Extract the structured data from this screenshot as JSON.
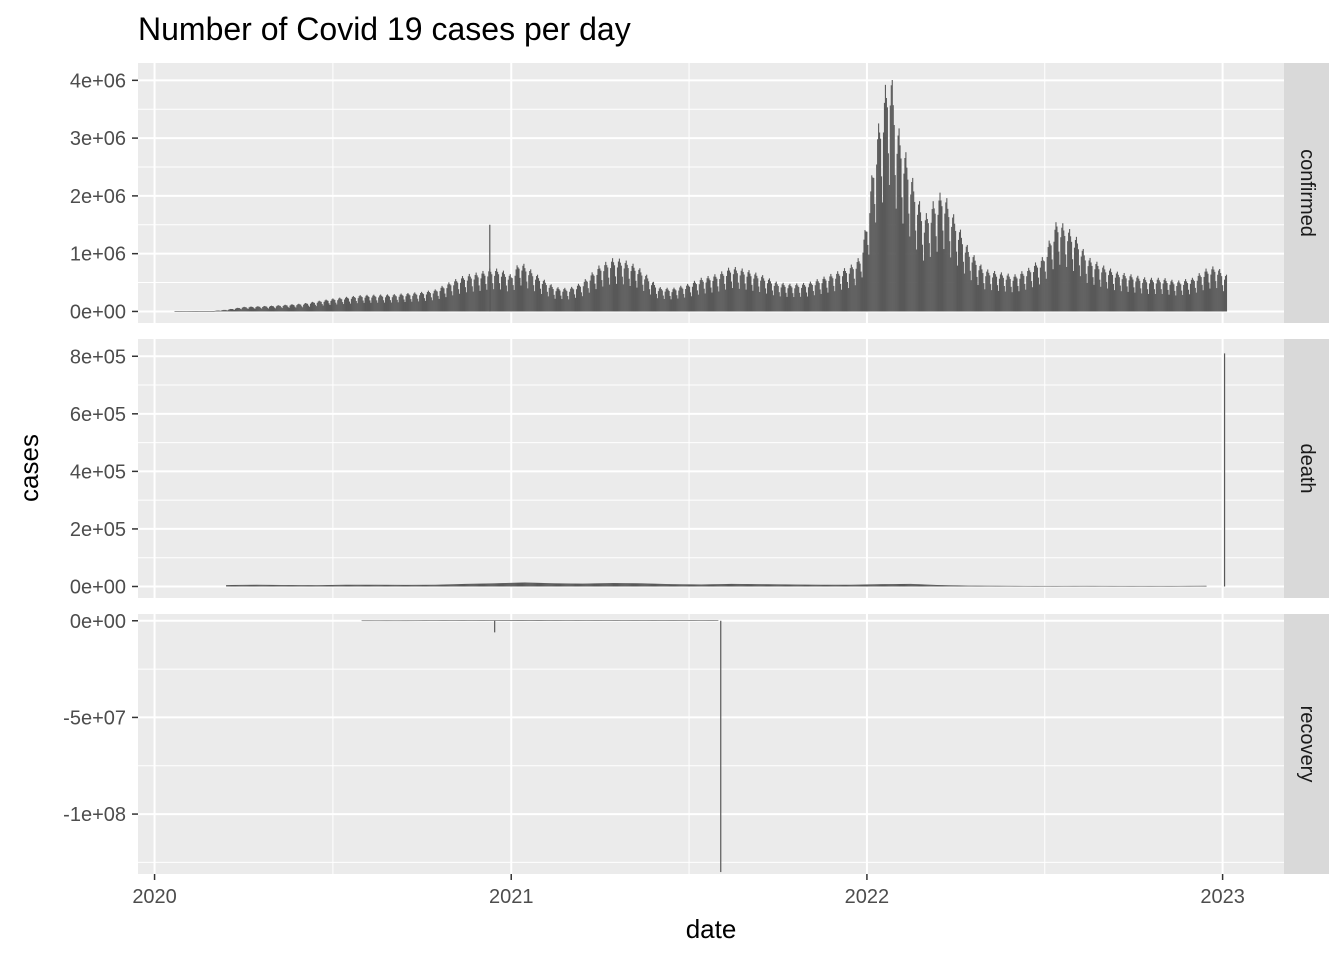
{
  "chart_data": {
    "type": "bar",
    "title": "Number of Covid 19 cases per day",
    "xlabel": "date",
    "ylabel": "cases",
    "grid": true,
    "legend": "none",
    "x_ticks": [
      "2020",
      "2021",
      "2022",
      "2023"
    ],
    "x_range": [
      "2019-12-15",
      "2023-03-05"
    ],
    "bar_color": "#595959",
    "panel_background": "#ebebeb",
    "strip_background": "#d9d9d9",
    "gridline_color": "#ffffff",
    "facets": [
      {
        "label": "confirmed",
        "ylim": [
          -200000,
          4300000
        ],
        "y_ticks": [
          {
            "value": 0,
            "label": "0e+00"
          },
          {
            "value": 1000000,
            "label": "1e+06"
          },
          {
            "value": 2000000,
            "label": "2e+06"
          },
          {
            "value": 3000000,
            "label": "3e+06"
          },
          {
            "value": 4000000,
            "label": "4e+06"
          }
        ],
        "x": [
          "2020-01-22",
          "2020-02-15",
          "2020-03-01",
          "2020-03-15",
          "2020-04-01",
          "2020-05-01",
          "2020-06-01",
          "2020-07-01",
          "2020-08-01",
          "2020-09-01",
          "2020-10-01",
          "2020-10-15",
          "2020-11-01",
          "2020-11-15",
          "2020-12-01",
          "2020-12-10",
          "2020-12-20",
          "2021-01-01",
          "2021-01-10",
          "2021-01-20",
          "2021-02-01",
          "2021-02-15",
          "2021-03-01",
          "2021-03-15",
          "2021-04-01",
          "2021-04-15",
          "2021-04-25",
          "2021-05-10",
          "2021-05-20",
          "2021-06-01",
          "2021-06-15",
          "2021-07-01",
          "2021-07-15",
          "2021-08-01",
          "2021-08-15",
          "2021-09-01",
          "2021-09-15",
          "2021-10-01",
          "2021-10-15",
          "2021-11-01",
          "2021-11-15",
          "2021-12-01",
          "2021-12-15",
          "2021-12-25",
          "2022-01-01",
          "2022-01-10",
          "2022-01-20",
          "2022-01-25",
          "2022-02-01",
          "2022-02-10",
          "2022-02-20",
          "2022-03-01",
          "2022-03-10",
          "2022-03-20",
          "2022-04-01",
          "2022-04-15",
          "2022-05-01",
          "2022-05-15",
          "2022-06-01",
          "2022-06-15",
          "2022-07-01",
          "2022-07-15",
          "2022-07-25",
          "2022-08-05",
          "2022-08-15",
          "2022-09-01",
          "2022-09-15",
          "2022-10-01",
          "2022-10-15",
          "2022-11-01",
          "2022-11-15",
          "2022-12-01",
          "2022-12-15",
          "2022-12-25",
          "2023-01-01",
          "2023-01-05"
        ],
        "values": [
          500,
          2000,
          8000,
          30000,
          75000,
          95000,
          130000,
          210000,
          270000,
          280000,
          320000,
          360000,
          500000,
          600000,
          650000,
          700000,
          700000,
          600000,
          830000,
          700000,
          550000,
          400000,
          380000,
          480000,
          750000,
          870000,
          860000,
          750000,
          600000,
          400000,
          380000,
          450000,
          550000,
          620000,
          740000,
          680000,
          600000,
          480000,
          450000,
          470000,
          550000,
          650000,
          750000,
          900000,
          1500000,
          2800000,
          3700000,
          4050000,
          3100000,
          2600000,
          2000000,
          1550000,
          1800000,
          2000000,
          1550000,
          1050000,
          700000,
          650000,
          600000,
          700000,
          900000,
          1500000,
          1400000,
          1200000,
          900000,
          750000,
          650000,
          600000,
          550000,
          550000,
          500000,
          550000,
          700000,
          750000,
          650000,
          600000
        ],
        "spikes": [
          {
            "x": "2020-12-10",
            "value": 1500000
          }
        ]
      },
      {
        "label": "death",
        "ylim": [
          -40000,
          860000
        ],
        "y_ticks": [
          {
            "value": 0,
            "label": "0e+00"
          },
          {
            "value": 200000,
            "label": "2e+05"
          },
          {
            "value": 400000,
            "label": "4e+05"
          },
          {
            "value": 600000,
            "label": "6e+05"
          },
          {
            "value": 800000,
            "label": "8e+05"
          }
        ],
        "x": [
          "2020-03-15",
          "2020-04-15",
          "2020-05-15",
          "2020-06-15",
          "2020-07-15",
          "2020-08-15",
          "2020-09-15",
          "2020-10-15",
          "2020-11-15",
          "2020-12-15",
          "2021-01-15",
          "2021-02-15",
          "2021-03-15",
          "2021-04-15",
          "2021-05-15",
          "2021-06-15",
          "2021-07-15",
          "2021-08-15",
          "2021-09-15",
          "2021-10-15",
          "2021-11-15",
          "2021-12-15",
          "2022-01-15",
          "2022-02-15",
          "2022-03-15",
          "2022-04-15",
          "2022-05-15",
          "2022-06-15",
          "2022-07-15",
          "2022-08-15",
          "2022-09-15",
          "2022-10-15",
          "2022-11-15",
          "2022-12-15"
        ],
        "values": [
          5000,
          6000,
          5000,
          4500,
          6000,
          6000,
          5500,
          6000,
          9000,
          11000,
          14000,
          11000,
          10000,
          12000,
          11000,
          8000,
          7000,
          9000,
          8000,
          7000,
          6000,
          6000,
          8000,
          9000,
          5000,
          3000,
          2500,
          2000,
          2000,
          2200,
          2000,
          2000,
          2000,
          2500
        ],
        "spikes": [
          {
            "x": "2023-01-03",
            "value": 810000
          }
        ]
      },
      {
        "label": "recovery",
        "ylim": [
          -131000000,
          3500000
        ],
        "y_ticks": [
          {
            "value": 0,
            "label": "0e+00"
          },
          {
            "value": -50000000,
            "label": "-5e+07"
          },
          {
            "value": -100000000,
            "label": "-1e+08"
          }
        ],
        "x": [
          "2020-08-01",
          "2020-09-15",
          "2020-10-15",
          "2020-11-15",
          "2020-12-01",
          "2020-12-15",
          "2021-01-01",
          "2021-02-01",
          "2021-03-01",
          "2021-04-01",
          "2021-05-01",
          "2021-06-01",
          "2021-07-01",
          "2021-08-01"
        ],
        "values": [
          150000,
          150000,
          200000,
          250000,
          250000,
          300000,
          350000,
          350000,
          300000,
          250000,
          300000,
          300000,
          250000,
          200000
        ],
        "spikes": [
          {
            "x": "2020-12-15",
            "value": -6000000
          },
          {
            "x": "2021-08-04",
            "value": -130000000
          }
        ]
      }
    ]
  }
}
